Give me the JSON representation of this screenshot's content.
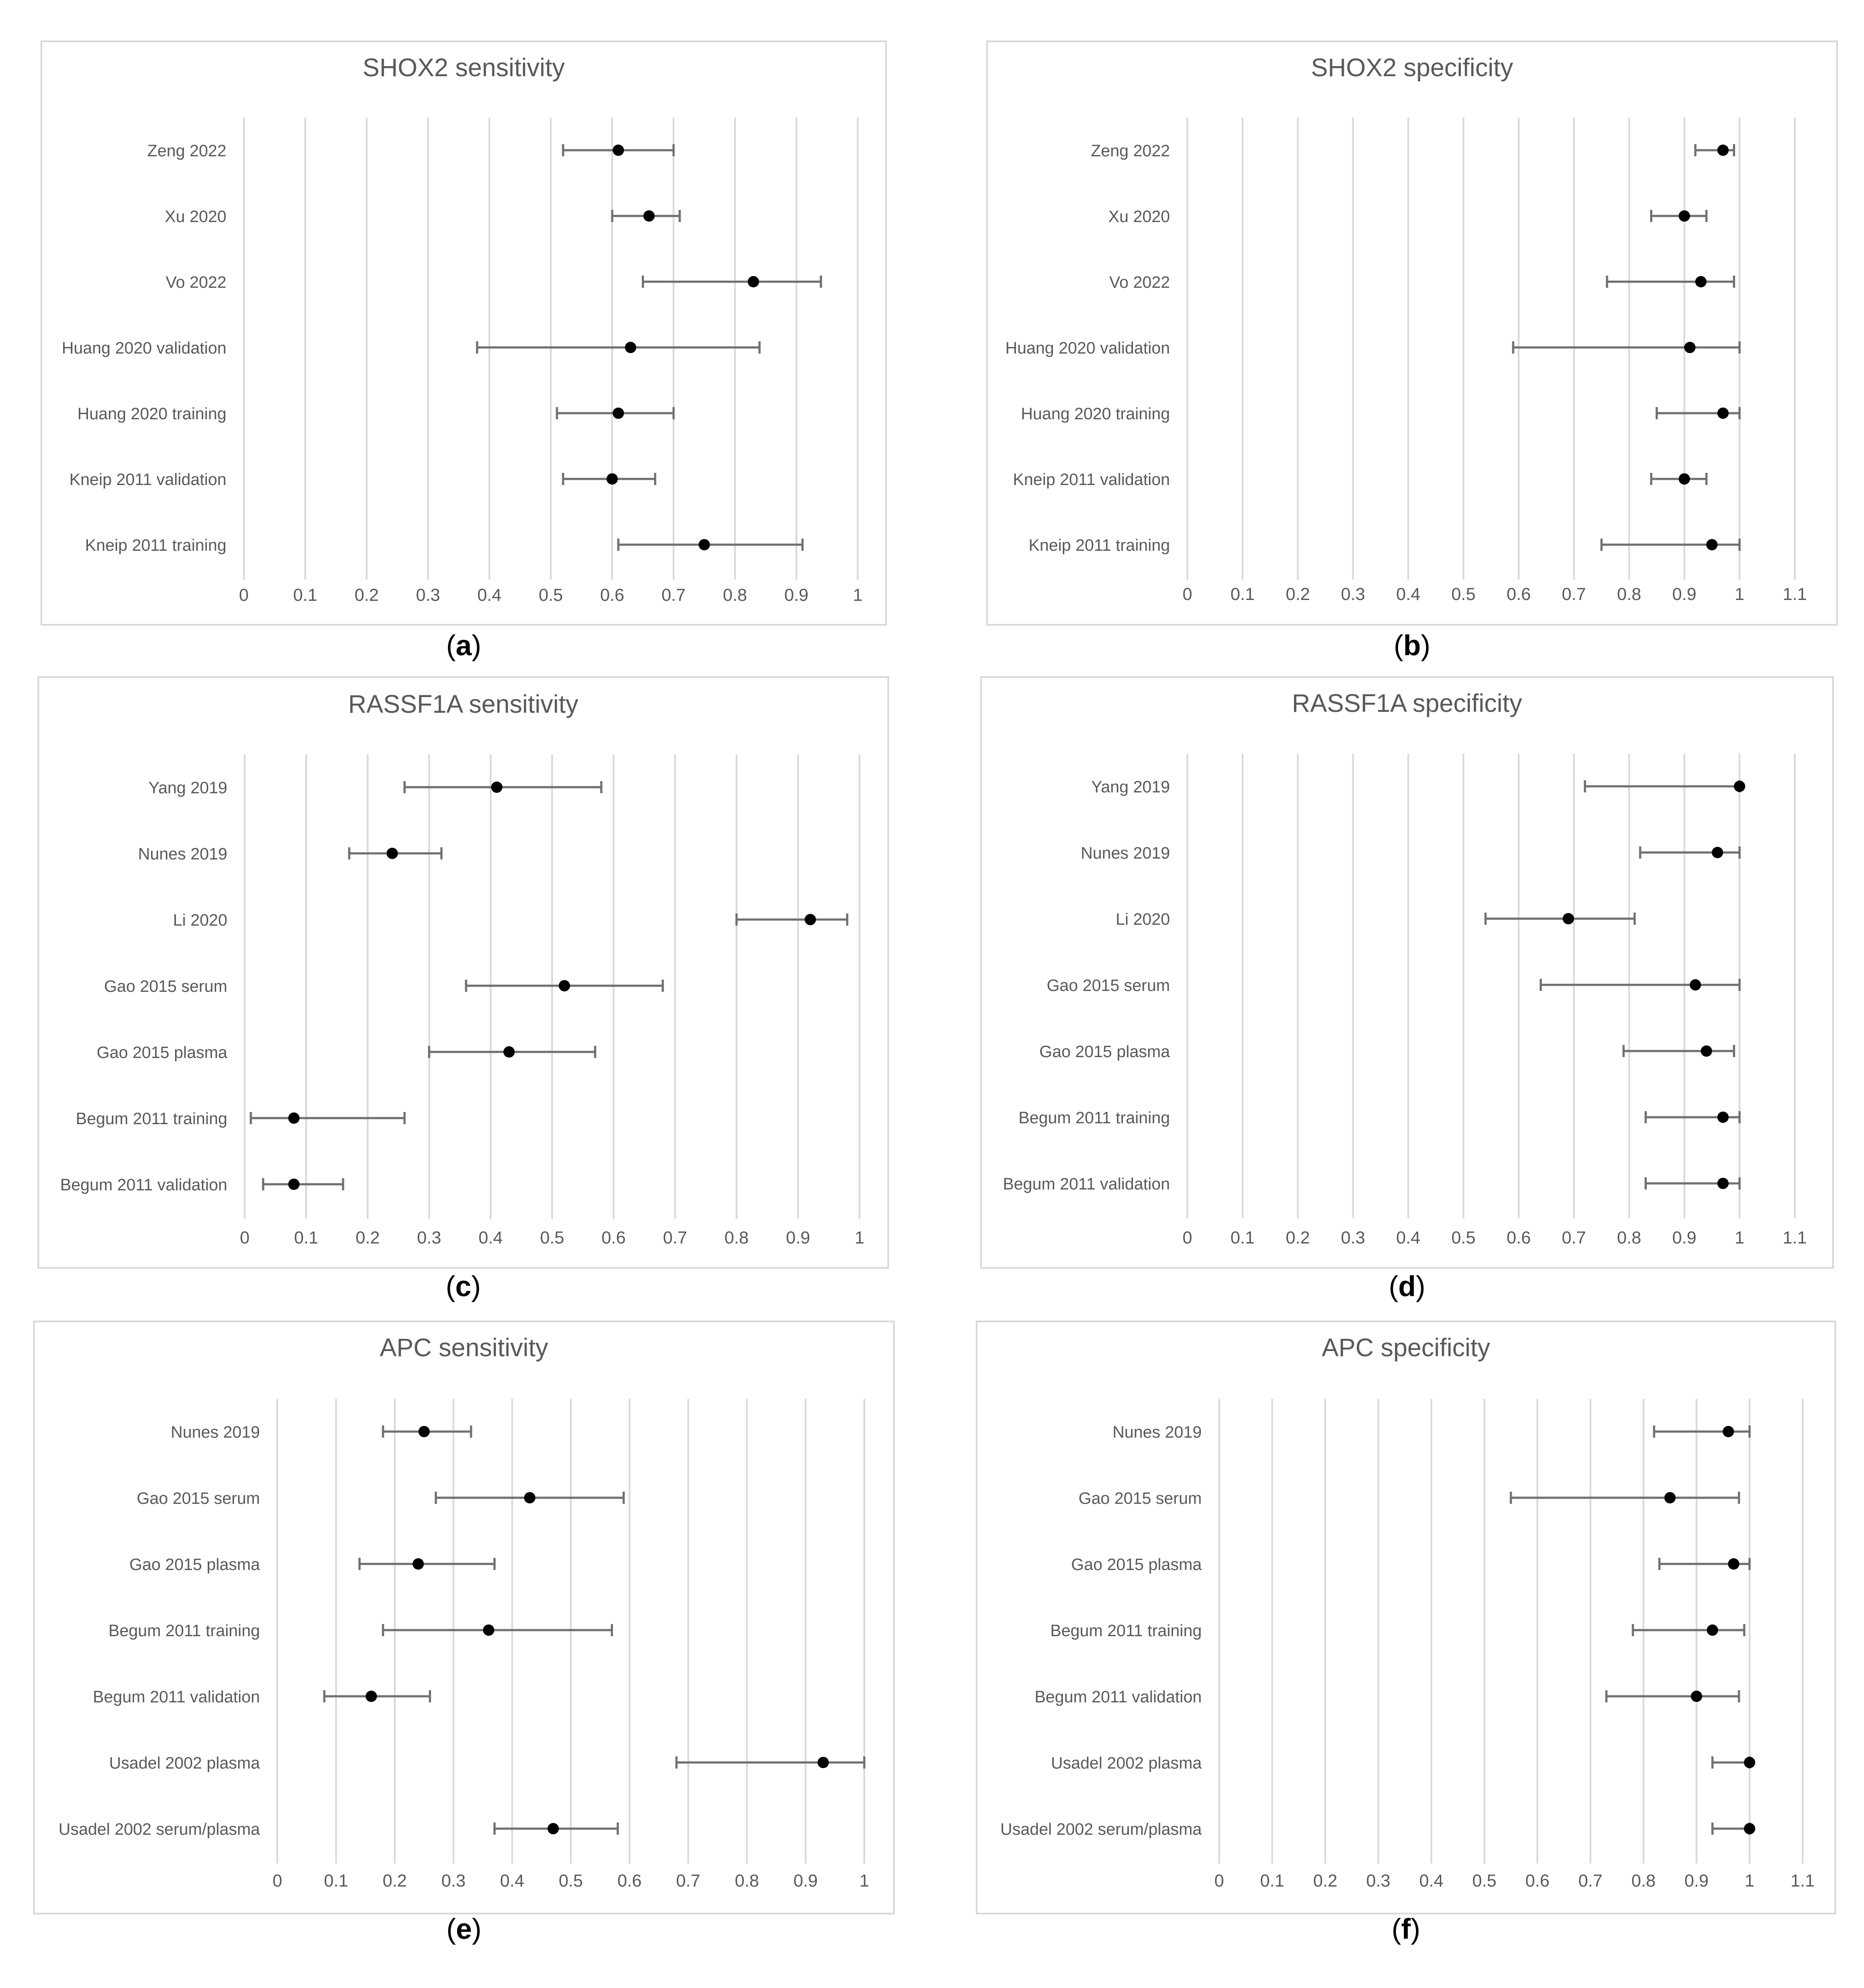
{
  "figure": {
    "panel_captions": [
      "(a)",
      "(b)",
      "(c)",
      "(d)",
      "(e)",
      "(f)"
    ]
  },
  "chart_data": [
    {
      "type": "scatter",
      "title": "SHOX2 sensitivity",
      "caption": "(a)",
      "xlabel": "",
      "ylabel": "",
      "xlim": [
        0,
        1
      ],
      "ticks": [
        "0",
        "0.1",
        "0.2",
        "0.3",
        "0.4",
        "0.5",
        "0.6",
        "0.7",
        "0.8",
        "0.9",
        "1"
      ],
      "grid": true,
      "rows": [
        {
          "label": "Zeng 2022",
          "value": 0.61,
          "low": 0.52,
          "high": 0.7
        },
        {
          "label": "Xu 2020",
          "value": 0.66,
          "low": 0.6,
          "high": 0.71
        },
        {
          "label": "Vo 2022",
          "value": 0.83,
          "low": 0.65,
          "high": 0.94
        },
        {
          "label": "Huang 2020 validation",
          "value": 0.63,
          "low": 0.38,
          "high": 0.84
        },
        {
          "label": "Huang 2020 training",
          "value": 0.61,
          "low": 0.51,
          "high": 0.7
        },
        {
          "label": "Kneip 2011 validation",
          "value": 0.6,
          "low": 0.52,
          "high": 0.67
        },
        {
          "label": "Kneip 2011 training",
          "value": 0.75,
          "low": 0.61,
          "high": 0.91
        }
      ]
    },
    {
      "type": "scatter",
      "title": "SHOX2 specificity",
      "caption": "(b)",
      "xlabel": "",
      "ylabel": "",
      "xlim": [
        0,
        1.1
      ],
      "ticks": [
        "0",
        "0.1",
        "0.2",
        "0.3",
        "0.4",
        "0.5",
        "0.6",
        "0.7",
        "0.8",
        "0.9",
        "1",
        "1.1"
      ],
      "grid": true,
      "rows": [
        {
          "label": "Zeng 2022",
          "value": 0.97,
          "low": 0.92,
          "high": 0.99
        },
        {
          "label": "Xu 2020",
          "value": 0.9,
          "low": 0.84,
          "high": 0.94
        },
        {
          "label": "Vo 2022",
          "value": 0.93,
          "low": 0.76,
          "high": 0.99
        },
        {
          "label": "Huang 2020 validation",
          "value": 0.91,
          "low": 0.59,
          "high": 1.0
        },
        {
          "label": "Huang 2020 training",
          "value": 0.97,
          "low": 0.85,
          "high": 1.0
        },
        {
          "label": "Kneip 2011 validation",
          "value": 0.9,
          "low": 0.84,
          "high": 0.94
        },
        {
          "label": "Kneip 2011 training",
          "value": 0.95,
          "low": 0.75,
          "high": 1.0
        }
      ]
    },
    {
      "type": "scatter",
      "title": "RASSF1A sensitivity",
      "caption": "(c)",
      "xlabel": "",
      "ylabel": "",
      "xlim": [
        0,
        1
      ],
      "ticks": [
        "0",
        "0.1",
        "0.2",
        "0.3",
        "0.4",
        "0.5",
        "0.6",
        "0.7",
        "0.8",
        "0.9",
        "1"
      ],
      "grid": true,
      "rows": [
        {
          "label": "Yang 2019",
          "value": 0.41,
          "low": 0.26,
          "high": 0.58
        },
        {
          "label": "Nunes 2019",
          "value": 0.24,
          "low": 0.17,
          "high": 0.32
        },
        {
          "label": "Li 2020",
          "value": 0.92,
          "low": 0.8,
          "high": 0.98
        },
        {
          "label": "Gao 2015 serum",
          "value": 0.52,
          "low": 0.36,
          "high": 0.68
        },
        {
          "label": "Gao 2015 plasma",
          "value": 0.43,
          "low": 0.3,
          "high": 0.57
        },
        {
          "label": "Begum 2011 training",
          "value": 0.08,
          "low": 0.01,
          "high": 0.26
        },
        {
          "label": "Begum 2011 validation",
          "value": 0.08,
          "low": 0.03,
          "high": 0.16
        }
      ]
    },
    {
      "type": "scatter",
      "title": "RASSF1A specificity",
      "caption": "(d)",
      "xlabel": "",
      "ylabel": "",
      "xlim": [
        0,
        1.1
      ],
      "ticks": [
        "0",
        "0.1",
        "0.2",
        "0.3",
        "0.4",
        "0.5",
        "0.6",
        "0.7",
        "0.8",
        "0.9",
        "1",
        "1.1"
      ],
      "grid": true,
      "rows": [
        {
          "label": "Yang 2019",
          "value": 1.0,
          "low": 0.72,
          "high": 1.0
        },
        {
          "label": "Nunes 2019",
          "value": 0.96,
          "low": 0.82,
          "high": 1.0
        },
        {
          "label": "Li 2020",
          "value": 0.69,
          "low": 0.54,
          "high": 0.81
        },
        {
          "label": "Gao 2015 serum",
          "value": 0.92,
          "low": 0.64,
          "high": 1.0
        },
        {
          "label": "Gao 2015 plasma",
          "value": 0.94,
          "low": 0.79,
          "high": 0.99
        },
        {
          "label": "Begum 2011 training",
          "value": 0.97,
          "low": 0.83,
          "high": 1.0
        },
        {
          "label": "Begum 2011 validation",
          "value": 0.97,
          "low": 0.83,
          "high": 1.0
        }
      ]
    },
    {
      "type": "scatter",
      "title": "APC sensitivity",
      "caption": "(e)",
      "xlabel": "",
      "ylabel": "",
      "xlim": [
        0,
        1
      ],
      "ticks": [
        "0",
        "0.1",
        "0.2",
        "0.3",
        "0.4",
        "0.5",
        "0.6",
        "0.7",
        "0.8",
        "0.9",
        "1"
      ],
      "grid": true,
      "rows": [
        {
          "label": "Nunes 2019",
          "value": 0.25,
          "low": 0.18,
          "high": 0.33
        },
        {
          "label": "Gao 2015 serum",
          "value": 0.43,
          "low": 0.27,
          "high": 0.59
        },
        {
          "label": "Gao 2015 plasma",
          "value": 0.24,
          "low": 0.14,
          "high": 0.37
        },
        {
          "label": "Begum 2011 training",
          "value": 0.36,
          "low": 0.18,
          "high": 0.57
        },
        {
          "label": "Begum 2011 validation",
          "value": 0.16,
          "low": 0.08,
          "high": 0.26
        },
        {
          "label": "Usadel 2002 plasma",
          "value": 0.93,
          "low": 0.68,
          "high": 1.0
        },
        {
          "label": "Usadel 2002 serum/plasma",
          "value": 0.47,
          "low": 0.37,
          "high": 0.58
        }
      ]
    },
    {
      "type": "scatter",
      "title": "APC specificity",
      "caption": "(f)",
      "xlabel": "",
      "ylabel": "",
      "xlim": [
        0,
        1.1
      ],
      "ticks": [
        "0",
        "0.1",
        "0.2",
        "0.3",
        "0.4",
        "0.5",
        "0.6",
        "0.7",
        "0.8",
        "0.9",
        "1",
        "1.1"
      ],
      "grid": true,
      "rows": [
        {
          "label": "Nunes 2019",
          "value": 0.96,
          "low": 0.82,
          "high": 1.0
        },
        {
          "label": "Gao 2015 serum",
          "value": 0.85,
          "low": 0.55,
          "high": 0.98
        },
        {
          "label": "Gao 2015 plasma",
          "value": 0.97,
          "low": 0.83,
          "high": 1.0
        },
        {
          "label": "Begum 2011 training",
          "value": 0.93,
          "low": 0.78,
          "high": 0.99
        },
        {
          "label": "Begum 2011 validation",
          "value": 0.9,
          "low": 0.73,
          "high": 0.98
        },
        {
          "label": "Usadel 2002 plasma",
          "value": 1.0,
          "low": 0.93,
          "high": 1.0
        },
        {
          "label": "Usadel 2002 serum/plasma",
          "value": 1.0,
          "low": 0.93,
          "high": 1.0
        }
      ]
    }
  ]
}
